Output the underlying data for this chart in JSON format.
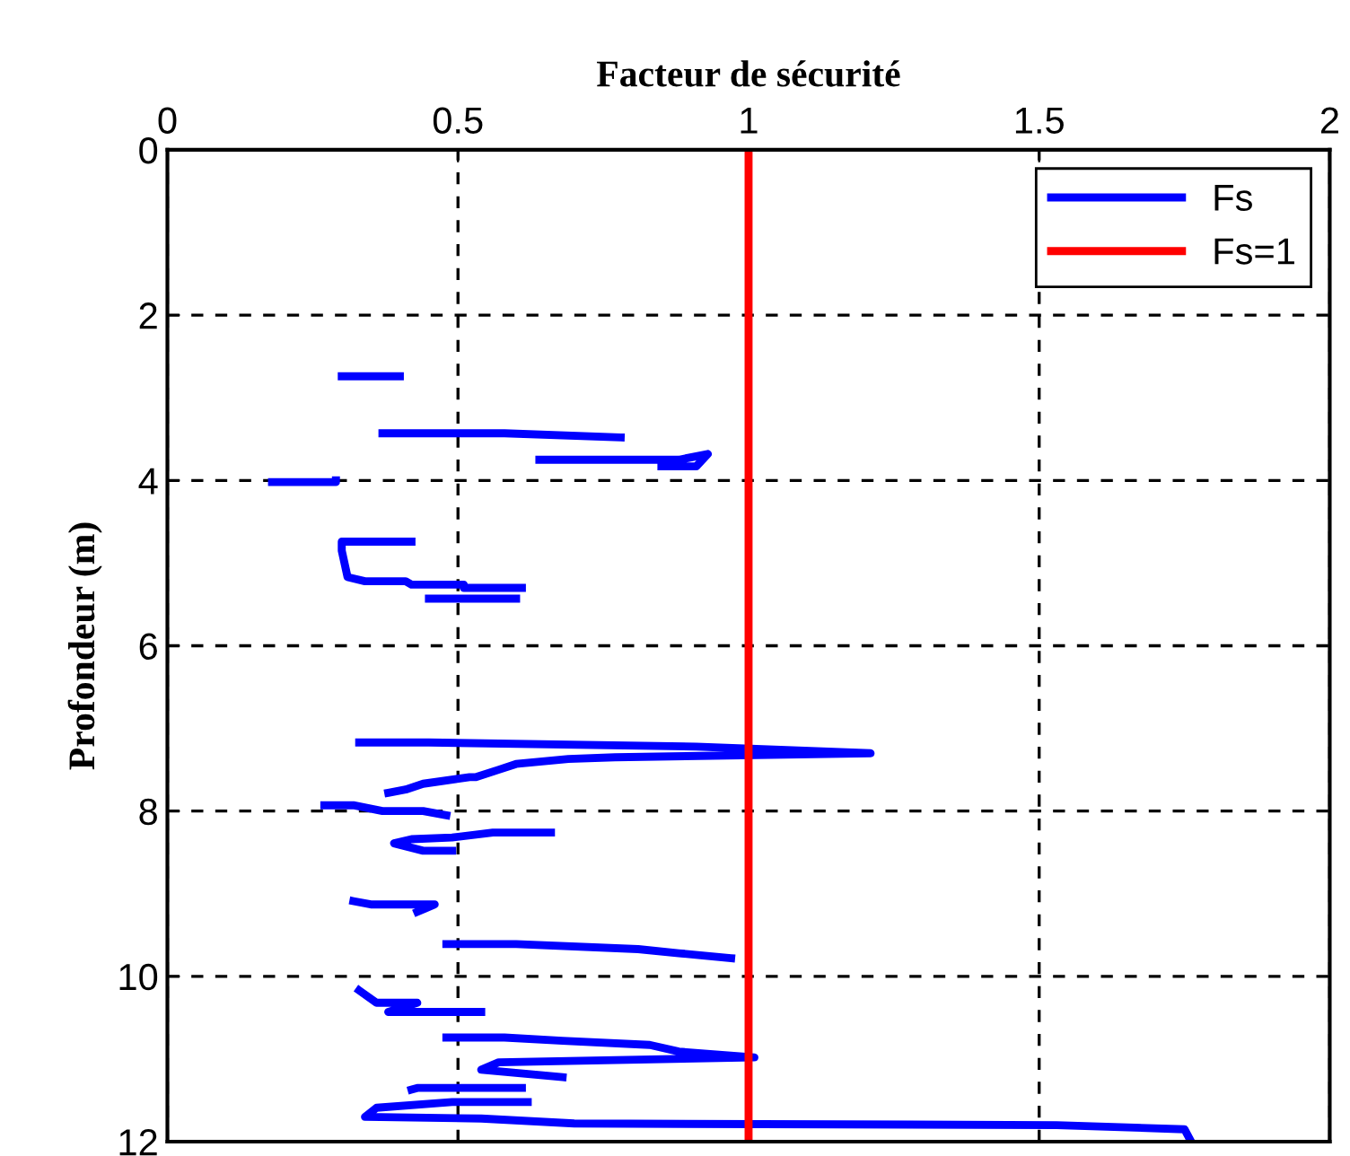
{
  "chart_data": {
    "type": "line",
    "xlabel": "Facteur de sécurité",
    "ylabel": "Profondeur (m)",
    "xlim": [
      0,
      2
    ],
    "xticks": [
      0,
      0.5,
      1,
      1.5,
      2
    ],
    "ylim": [
      12,
      0
    ],
    "yticks": [
      0,
      2,
      4,
      6,
      8,
      10,
      12
    ],
    "grid": true,
    "legend": "top right",
    "line_style": "solid",
    "marker": "none",
    "series": [
      {
        "name": "Fs",
        "color": "#0000ff",
        "x": [
          0.3,
          0.4,
          null,
          0.37,
          0.58,
          0.78,
          null,
          0.64,
          0.88,
          0.93,
          0.91,
          0.85,
          null,
          0.18,
          0.29,
          0.29,
          null,
          0.42,
          0.3,
          0.3,
          0.31,
          0.34,
          0.41,
          0.42,
          0.51,
          0.51,
          0.61,
          null,
          0.45,
          0.6,
          null,
          0.33,
          0.45,
          0.91,
          1.21,
          0.77,
          0.69,
          0.6,
          0.57,
          0.53,
          0.52,
          0.44,
          0.41,
          0.38,
          null,
          0.27,
          0.32,
          0.37,
          0.44,
          0.48,
          null,
          0.66,
          0.56,
          0.49,
          0.42,
          0.39,
          0.44,
          0.49,
          null,
          0.32,
          0.35,
          0.46,
          0.43,
          null,
          0.48,
          0.6,
          0.81,
          0.88,
          0.97,
          null,
          0.33,
          0.36,
          0.43,
          0.38,
          0.54,
          null,
          0.48,
          0.58,
          0.68,
          0.83,
          0.88,
          1.01,
          0.57,
          0.54,
          0.68,
          null,
          0.61,
          0.43,
          0.42,
          null,
          0.62,
          0.49,
          0.36,
          0.34,
          0.54,
          0.7,
          1.53,
          1.75,
          1.76
        ],
        "values": [
          2.74,
          2.74,
          null,
          3.43,
          3.43,
          3.48,
          null,
          3.75,
          3.75,
          3.68,
          3.83,
          3.83,
          null,
          4.02,
          4.02,
          4.0,
          null,
          4.74,
          4.74,
          4.85,
          5.17,
          5.22,
          5.22,
          5.26,
          5.26,
          5.3,
          5.3,
          null,
          5.43,
          5.43,
          null,
          7.17,
          7.17,
          7.22,
          7.3,
          7.35,
          7.37,
          7.43,
          7.5,
          7.59,
          7.59,
          7.67,
          7.74,
          7.78,
          null,
          7.93,
          7.93,
          8.0,
          8.0,
          8.05,
          null,
          8.26,
          8.26,
          8.32,
          8.34,
          8.39,
          8.48,
          8.48,
          null,
          9.09,
          9.13,
          9.13,
          9.22,
          null,
          9.61,
          9.61,
          9.67,
          9.72,
          9.78,
          null,
          10.17,
          10.32,
          10.32,
          10.43,
          10.43,
          null,
          10.74,
          10.74,
          10.78,
          10.83,
          10.91,
          10.98,
          11.04,
          11.13,
          11.22,
          null,
          11.35,
          11.35,
          11.37,
          null,
          11.52,
          11.52,
          11.59,
          11.7,
          11.72,
          11.78,
          11.8,
          11.85,
          11.98
        ]
      },
      {
        "name": "Fs=1",
        "color": "#ff0000",
        "x": [
          1,
          1
        ],
        "values": [
          0,
          12
        ]
      }
    ]
  }
}
